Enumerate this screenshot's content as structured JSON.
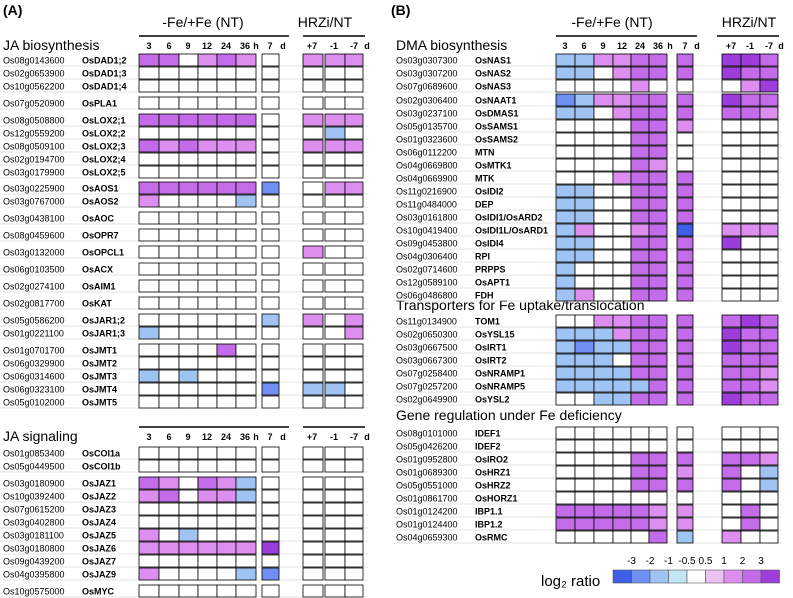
{
  "palette": {
    "n3": "#3f5ee6",
    "n2": "#6f8ff2",
    "n1": "#9fc4f3",
    "n05": "#c3e6f7",
    "z": "#ffffff",
    "p05": "#eac2f4",
    "p1": "#dd8fef",
    "p2": "#c36be8",
    "p3": "#9c3ddc"
  },
  "panelA": {
    "label": "(A)",
    "group1": "-Fe/+Fe (NT)",
    "group2": "HRZi/NT",
    "tp1": [
      "3",
      "6",
      "9",
      "12",
      "24",
      "36",
      "h",
      "7",
      "d"
    ],
    "tp2": [
      "+7",
      "-1",
      "-7",
      "d"
    ],
    "sec1": "JA biosynthesis",
    "sec2": "JA signaling",
    "rows": [
      {
        "id": "Os08g0143600",
        "name": "OsDAD1;2",
        "v": [
          "p2",
          "p2",
          "z",
          "p1",
          "p2",
          "p1",
          "z",
          "p1",
          "p1",
          "p1"
        ]
      },
      {
        "id": "Os02g0653900",
        "name": "OsDAD1;3",
        "v": [
          "z",
          "z",
          "z",
          "z",
          "z",
          "z",
          "z",
          "z",
          "z",
          "z"
        ]
      },
      {
        "id": "Os10g0562200",
        "name": "OsDAD1;4",
        "v": [
          "z",
          "z",
          "z",
          "z",
          "z",
          "z",
          "z",
          "z",
          "z",
          "z"
        ]
      },
      {
        "id": "Os07g0520900",
        "name": "OsPLA1",
        "v": [
          "z",
          "z",
          "z",
          "z",
          "z",
          "z",
          "z",
          "z",
          "z",
          "z"
        ]
      },
      {
        "id": "Os08g0508800",
        "name": "OsLOX2;1",
        "v": [
          "p2",
          "p2",
          "p2",
          "p2",
          "p2",
          "p2",
          "z",
          "p1",
          "p1",
          "p1"
        ]
      },
      {
        "id": "Os12g0559200",
        "name": "OsLOX2;2",
        "v": [
          "z",
          "z",
          "z",
          "z",
          "z",
          "z",
          "z",
          "z",
          "n1",
          "z"
        ]
      },
      {
        "id": "Os08g0509100",
        "name": "OsLOX2;3",
        "v": [
          "p2",
          "p1",
          "p2",
          "p1",
          "p1",
          "p1",
          "z",
          "p1",
          "p1",
          "p1"
        ]
      },
      {
        "id": "Os02g0194700",
        "name": "OsLOX2;4",
        "v": [
          "z",
          "z",
          "z",
          "z",
          "z",
          "z",
          "z",
          "z",
          "z",
          "z"
        ]
      },
      {
        "id": "Os03g0179900",
        "name": "OsLOX2;5",
        "v": [
          "z",
          "z",
          "z",
          "z",
          "z",
          "z",
          "z",
          "z",
          "z",
          "z"
        ]
      },
      {
        "id": "Os03g0225900",
        "name": "OsAOS1",
        "v": [
          "p2",
          "p2",
          "p2",
          "p2",
          "p2",
          "p2",
          "n2",
          "z",
          "p1",
          "p1"
        ]
      },
      {
        "id": "Os03g0767000",
        "name": "OsAOS2",
        "v": [
          "p1",
          "z",
          "z",
          "z",
          "z",
          "n1",
          "z",
          "z",
          "z",
          "z"
        ]
      },
      {
        "id": "Os03g0438100",
        "name": "OsAOC",
        "v": [
          "z",
          "z",
          "z",
          "z",
          "z",
          "z",
          "z",
          "z",
          "z",
          "z"
        ]
      },
      {
        "id": "Os08g0459600",
        "name": "OsOPR7",
        "v": [
          "z",
          "z",
          "z",
          "z",
          "z",
          "z",
          "z",
          "z",
          "z",
          "z"
        ]
      },
      {
        "id": "Os03g0132000",
        "name": "OsOPCL1",
        "v": [
          "z",
          "z",
          "z",
          "z",
          "z",
          "z",
          "z",
          "p1",
          "z",
          "z"
        ]
      },
      {
        "id": "Os06g0103500",
        "name": "OsACX",
        "v": [
          "z",
          "z",
          "z",
          "z",
          "z",
          "z",
          "z",
          "z",
          "z",
          "z"
        ]
      },
      {
        "id": "Os02g0274100",
        "name": "OsAIM1",
        "v": [
          "z",
          "z",
          "z",
          "z",
          "z",
          "z",
          "z",
          "z",
          "z",
          "z"
        ]
      },
      {
        "id": "Os02g0817700",
        "name": "OsKAT",
        "v": [
          "z",
          "z",
          "z",
          "z",
          "z",
          "z",
          "z",
          "z",
          "z",
          "z"
        ]
      },
      {
        "id": "Os05g0586200",
        "name": "OsJAR1;2",
        "v": [
          "z",
          "z",
          "z",
          "z",
          "z",
          "z",
          "n1",
          "p1",
          "z",
          "p1"
        ]
      },
      {
        "id": "Os01g0221100",
        "name": "OsJAR1;3",
        "v": [
          "n1",
          "z",
          "z",
          "z",
          "z",
          "z",
          "z",
          "z",
          "z",
          "p1"
        ]
      },
      {
        "id": "Os01g0701700",
        "name": "OsJMT1",
        "v": [
          "z",
          "z",
          "z",
          "z",
          "p2",
          "z",
          "z",
          "z",
          "z",
          "z"
        ]
      },
      {
        "id": "Os06g0329900",
        "name": "OsJMT2",
        "v": [
          "z",
          "z",
          "z",
          "z",
          "z",
          "z",
          "z",
          "z",
          "z",
          "z"
        ]
      },
      {
        "id": "Os06g0314600",
        "name": "OsJMT3",
        "v": [
          "n1",
          "z",
          "n1",
          "z",
          "z",
          "z",
          "z",
          "z",
          "z",
          "z"
        ]
      },
      {
        "id": "Os06g0323100",
        "name": "OsJMT4",
        "v": [
          "z",
          "z",
          "z",
          "z",
          "z",
          "z",
          "n2",
          "n1",
          "n1",
          "z"
        ]
      },
      {
        "id": "Os05g0102000",
        "name": "OsJMT5",
        "v": [
          "z",
          "z",
          "z",
          "z",
          "z",
          "z",
          "z",
          "z",
          "z",
          "z"
        ]
      },
      {
        "id": "Os01g0853400",
        "name": "OsCOI1a",
        "v": [
          "z",
          "z",
          "z",
          "z",
          "z",
          "z",
          "z",
          "z",
          "z",
          "z"
        ]
      },
      {
        "id": "Os05g0449500",
        "name": "OsCOI1b",
        "v": [
          "z",
          "z",
          "z",
          "z",
          "z",
          "z",
          "z",
          "z",
          "z",
          "z"
        ]
      },
      {
        "id": "Os03g0180900",
        "name": "OsJAZ1",
        "v": [
          "p2",
          "p1",
          "z",
          "p2",
          "p1",
          "n1",
          "z",
          "z",
          "z",
          "z"
        ]
      },
      {
        "id": "Os10g0392400",
        "name": "OsJAZ2",
        "v": [
          "p1",
          "p2",
          "z",
          "p1",
          "p1",
          "n1",
          "z",
          "z",
          "z",
          "z"
        ]
      },
      {
        "id": "Os07g0615200",
        "name": "OsJAZ3",
        "v": [
          "z",
          "z",
          "z",
          "z",
          "z",
          "z",
          "z",
          "z",
          "z",
          "z"
        ]
      },
      {
        "id": "Os03g0402800",
        "name": "OsJAZ4",
        "v": [
          "z",
          "z",
          "z",
          "z",
          "z",
          "z",
          "z",
          "z",
          "z",
          "z"
        ]
      },
      {
        "id": "Os03g0181100",
        "name": "OsJAZ5",
        "v": [
          "p1",
          "z",
          "n1",
          "z",
          "z",
          "z",
          "z",
          "z",
          "z",
          "z"
        ]
      },
      {
        "id": "Os03g0180800",
        "name": "OsJAZ6",
        "v": [
          "p1",
          "p1",
          "p1",
          "p1",
          "p1",
          "p1",
          "p3",
          "z",
          "z",
          "z"
        ]
      },
      {
        "id": "Os09g0439200",
        "name": "OsJAZ7",
        "v": [
          "z",
          "z",
          "z",
          "z",
          "z",
          "z",
          "z",
          "z",
          "z",
          "z"
        ]
      },
      {
        "id": "Os04g0395800",
        "name": "OsJAZ9",
        "v": [
          "p1",
          "z",
          "z",
          "z",
          "z",
          "n1",
          "n2",
          "z",
          "z",
          "z"
        ]
      },
      {
        "id": "Os10g0575000",
        "name": "OsMYC",
        "v": [
          "z",
          "z",
          "z",
          "z",
          "z",
          "z",
          "z",
          "z",
          "z",
          "z"
        ]
      }
    ]
  },
  "panelB": {
    "label": "(B)",
    "group1": "-Fe/+Fe (NT)",
    "group2": "HRZi/NT",
    "tp1": [
      "3",
      "6",
      "9",
      "12",
      "24",
      "36",
      "h",
      "7",
      "d"
    ],
    "tp2": [
      "+7",
      "-1",
      "-7",
      "d"
    ],
    "sec1": "DMA biosynthesis",
    "sec2": "Transporters for Fe uptake/translocation",
    "sec3": "Gene regulation under Fe deficiency",
    "rows": [
      {
        "id": "Os03g0307300",
        "name": "OsNAS1",
        "v": [
          "n1",
          "n1",
          "p1",
          "p1",
          "p2",
          "p2",
          "p2",
          "p3",
          "p3",
          "p2"
        ]
      },
      {
        "id": "Os03g0307200",
        "name": "OsNAS2",
        "v": [
          "n1",
          "n1",
          "z",
          "p1",
          "p2",
          "p2",
          "p2",
          "p3",
          "p2",
          "p2"
        ]
      },
      {
        "id": "Os07g0689600",
        "name": "OsNAS3",
        "v": [
          "z",
          "z",
          "z",
          "z",
          "p1",
          "z",
          "z",
          "z",
          "p1",
          "p3"
        ]
      },
      {
        "id": "Os02g0306400",
        "name": "OsNAAT1",
        "v": [
          "n2",
          "n1",
          "p1",
          "p1",
          "p2",
          "p2",
          "p2",
          "p3",
          "p2",
          "p2"
        ]
      },
      {
        "id": "Os03g0237100",
        "name": "OsDMAS1",
        "v": [
          "n1",
          "n1",
          "z",
          "p1",
          "p2",
          "p2",
          "p2",
          "p2",
          "p2",
          "p1"
        ]
      },
      {
        "id": "Os05g0135700",
        "name": "OsSAMS1",
        "v": [
          "z",
          "z",
          "z",
          "z",
          "p2",
          "p2",
          "p1",
          "z",
          "z",
          "z"
        ]
      },
      {
        "id": "Os01g0323600",
        "name": "OsSAMS2",
        "v": [
          "z",
          "z",
          "z",
          "z",
          "p2",
          "p2",
          "z",
          "z",
          "z",
          "z"
        ]
      },
      {
        "id": "Os06g0112200",
        "name": "MTN",
        "v": [
          "z",
          "z",
          "z",
          "z",
          "p2",
          "p2",
          "z",
          "z",
          "z",
          "z"
        ]
      },
      {
        "id": "Os04g0669800",
        "name": "OsMTK1",
        "v": [
          "z",
          "z",
          "z",
          "z",
          "p2",
          "p1",
          "z",
          "z",
          "z",
          "z"
        ]
      },
      {
        "id": "Os04g0669900",
        "name": "MTK",
        "v": [
          "z",
          "z",
          "z",
          "p1",
          "p2",
          "p2",
          "p2",
          "z",
          "z",
          "z"
        ]
      },
      {
        "id": "Os11g0216900",
        "name": "OsIDI2",
        "v": [
          "n1",
          "n1",
          "z",
          "z",
          "p2",
          "p2",
          "p2",
          "z",
          "z",
          "z"
        ]
      },
      {
        "id": "Os11g0484000",
        "name": "DEP",
        "v": [
          "n1",
          "n1",
          "z",
          "z",
          "p2",
          "p2",
          "p2",
          "z",
          "z",
          "z"
        ]
      },
      {
        "id": "Os03g0161800",
        "name": "OsIDI1/OsARD2",
        "v": [
          "n1",
          "n1",
          "z",
          "z",
          "p2",
          "p2",
          "p2",
          "z",
          "z",
          "z"
        ]
      },
      {
        "id": "Os10g0419400",
        "name": "OsIDI1L/OsARD1",
        "v": [
          "n1",
          "p1",
          "z",
          "z",
          "p1",
          "p2",
          "n3",
          "p1",
          "p1",
          "p1"
        ]
      },
      {
        "id": "Os09g0453800",
        "name": "OsIDI4",
        "v": [
          "n1",
          "n1",
          "z",
          "z",
          "p2",
          "p2",
          "p2",
          "p3",
          "z",
          "z"
        ]
      },
      {
        "id": "Os04g0306400",
        "name": "RPI",
        "v": [
          "n1",
          "n1",
          "z",
          "z",
          "p2",
          "p2",
          "p2",
          "z",
          "z",
          "z"
        ]
      },
      {
        "id": "Os02g0714600",
        "name": "PRPPS",
        "v": [
          "n1",
          "z",
          "z",
          "z",
          "p2",
          "p2",
          "p2",
          "z",
          "z",
          "z"
        ]
      },
      {
        "id": "Os12g0589100",
        "name": "OsAPT1",
        "v": [
          "n1",
          "z",
          "z",
          "z",
          "p2",
          "p2",
          "p2",
          "z",
          "z",
          "z"
        ]
      },
      {
        "id": "Os06g0486800",
        "name": "FDH",
        "v": [
          "n1",
          "p1",
          "z",
          "z",
          "p2",
          "p2",
          "p2",
          "z",
          "z",
          "z"
        ]
      },
      {
        "id": "Os11g0134900",
        "name": "TOM1",
        "v": [
          "z",
          "z",
          "p1",
          "p1",
          "p2",
          "p2",
          "p2",
          "p2",
          "p3",
          "p2"
        ]
      },
      {
        "id": "Os02g0650300",
        "name": "OsYSL15",
        "v": [
          "n1",
          "n1",
          "n1",
          "p1",
          "p2",
          "p2",
          "p2",
          "p3",
          "p2",
          "p2"
        ]
      },
      {
        "id": "Os03g0667500",
        "name": "OsIRT1",
        "v": [
          "n1",
          "n2",
          "n1",
          "n1",
          "p2",
          "p2",
          "p2",
          "p3",
          "p2",
          "p2"
        ]
      },
      {
        "id": "Os03g0667300",
        "name": "OsIRT2",
        "v": [
          "n1",
          "n1",
          "n1",
          "z",
          "p2",
          "p2",
          "p2",
          "p2",
          "p2",
          "p2"
        ]
      },
      {
        "id": "Os07g0258400",
        "name": "OsNRAMP1",
        "v": [
          "n1",
          "n1",
          "n1",
          "n1",
          "p2",
          "p2",
          "p2",
          "p2",
          "p2",
          "p1"
        ]
      },
      {
        "id": "Os07g0257200",
        "name": "OsNRAMP5",
        "v": [
          "n1",
          "n1",
          "n1",
          "n1",
          "n1",
          "p2",
          "p2",
          "p2",
          "p2",
          "p1"
        ]
      },
      {
        "id": "Os02g0649900",
        "name": "OsYSL2",
        "v": [
          "z",
          "z",
          "n1",
          "n1",
          "p2",
          "p2",
          "p2",
          "p3",
          "p2",
          "p2"
        ]
      },
      {
        "id": "Os08g0101000",
        "name": "IDEF1",
        "v": [
          "z",
          "z",
          "z",
          "z",
          "z",
          "z",
          "z",
          "z",
          "z",
          "z"
        ]
      },
      {
        "id": "Os05g0426200",
        "name": "IDEF2",
        "v": [
          "z",
          "z",
          "z",
          "z",
          "z",
          "z",
          "z",
          "z",
          "z",
          "z"
        ]
      },
      {
        "id": "Os01g0952800",
        "name": "OsIRO2",
        "v": [
          "z",
          "z",
          "z",
          "z",
          "p2",
          "p2",
          "p2",
          "p2",
          "p2",
          "p1"
        ]
      },
      {
        "id": "Os01g0689300",
        "name": "OsHRZ1",
        "v": [
          "z",
          "z",
          "z",
          "z",
          "p2",
          "p2",
          "p1",
          "p2",
          "z",
          "n1"
        ]
      },
      {
        "id": "Os05g0551000",
        "name": "OsHRZ2",
        "v": [
          "z",
          "z",
          "z",
          "z",
          "p2",
          "p2",
          "p2",
          "p2",
          "z",
          "n1"
        ]
      },
      {
        "id": "Os01g0861700",
        "name": "OsHORZ1",
        "v": [
          "z",
          "z",
          "z",
          "z",
          "z",
          "z",
          "z",
          "z",
          "z",
          "z"
        ]
      },
      {
        "id": "Os01g0124200",
        "name": "IBP1.1",
        "v": [
          "p2",
          "p2",
          "p2",
          "p2",
          "p2",
          "p1",
          "p1",
          "z",
          "p2",
          "z"
        ]
      },
      {
        "id": "Os01g0124400",
        "name": "IBP1.2",
        "v": [
          "p2",
          "p2",
          "p2",
          "p2",
          "p2",
          "p1",
          "p1",
          "z",
          "p2",
          "z"
        ]
      },
      {
        "id": "Os04g0659300",
        "name": "OsRMC",
        "v": [
          "z",
          "z",
          "z",
          "z",
          "z",
          "p2",
          "n1",
          "p1",
          "z",
          "z"
        ]
      }
    ]
  },
  "legend": {
    "labels": [
      "-3",
      "-2",
      "-1",
      "-0.5",
      "0.5",
      "1",
      "2",
      "3"
    ],
    "keys": [
      "n3",
      "n2",
      "n1",
      "n05",
      "z",
      "p05",
      "p1",
      "p2",
      "p3"
    ],
    "title": "log₂ ratio"
  }
}
